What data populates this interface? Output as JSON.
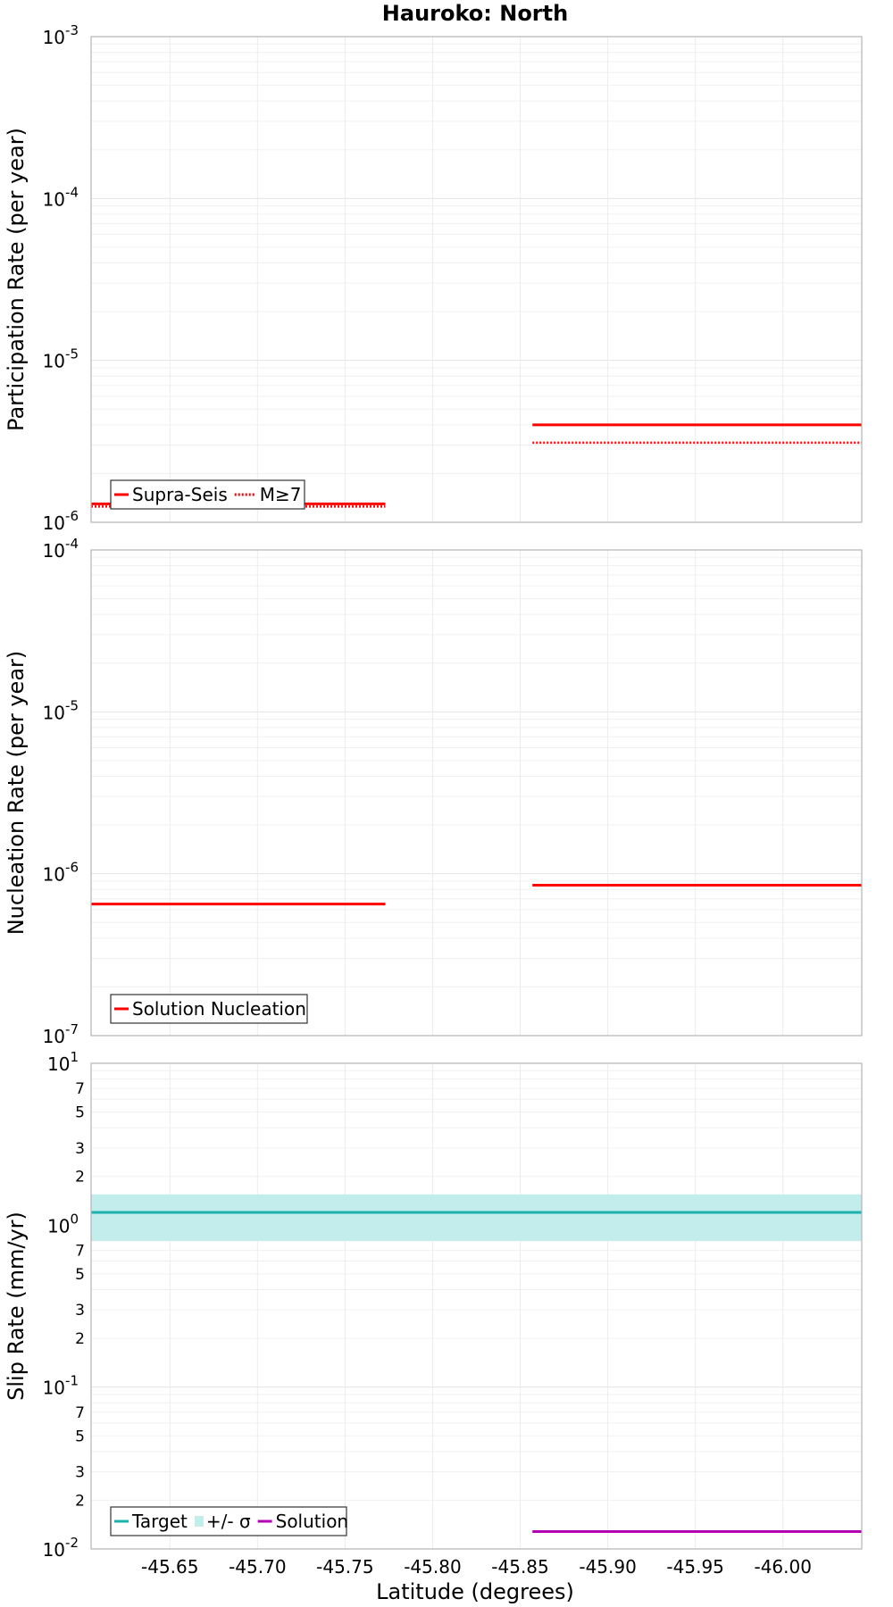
{
  "chart_data": {
    "type": "line",
    "title": "Hauroko: North",
    "xlabel": "Latitude (degrees)",
    "xlim": [
      -45.605,
      -46.045
    ],
    "x_ticks": [
      {
        "value": -45.65,
        "label": "-45.65"
      },
      {
        "value": -45.7,
        "label": "-45.70"
      },
      {
        "value": -45.75,
        "label": "-45.75"
      },
      {
        "value": -45.8,
        "label": "-45.80"
      },
      {
        "value": -45.85,
        "label": "-45.85"
      },
      {
        "value": -45.9,
        "label": "-45.90"
      },
      {
        "value": -45.95,
        "label": "-45.95"
      },
      {
        "value": -46.0,
        "label": "-46.00"
      }
    ],
    "panels": [
      {
        "id": "participation",
        "ylabel": "Participation Rate (per year)",
        "yscale": "log",
        "ylim": [
          1e-06,
          0.001
        ],
        "y_ticks": [
          {
            "value": 1e-06,
            "base": "10",
            "exp": "-6"
          },
          {
            "value": 1e-05,
            "base": "10",
            "exp": "-5"
          },
          {
            "value": 0.0001,
            "base": "10",
            "exp": "-4"
          },
          {
            "value": 0.001,
            "base": "10",
            "exp": "-3"
          }
        ],
        "series": [
          {
            "name": "Supra-Seis",
            "color": "#ff0000",
            "dash": "solid",
            "segments": [
              {
                "x0": -45.605,
                "x1": -45.773,
                "y": 1.3e-06
              },
              {
                "x0": -45.857,
                "x1": -46.045,
                "y": 4e-06
              }
            ]
          },
          {
            "name": "M≥7",
            "color": "#ff0000",
            "dash": "dotted",
            "segments": [
              {
                "x0": -45.605,
                "x1": -45.773,
                "y": 1.25e-06
              },
              {
                "x0": -45.857,
                "x1": -46.045,
                "y": 3.1e-06
              }
            ]
          }
        ],
        "legend": [
          {
            "label": "Supra-Seis",
            "color": "#ff0000",
            "style": "solid"
          },
          {
            "label": "M≥7",
            "color": "#ff0000",
            "style": "dotted"
          }
        ]
      },
      {
        "id": "nucleation",
        "ylabel": "Nucleation Rate (per year)",
        "yscale": "log",
        "ylim": [
          1e-07,
          0.0001
        ],
        "y_ticks": [
          {
            "value": 1e-07,
            "base": "10",
            "exp": "-7"
          },
          {
            "value": 1e-06,
            "base": "10",
            "exp": "-6"
          },
          {
            "value": 1e-05,
            "base": "10",
            "exp": "-5"
          },
          {
            "value": 0.0001,
            "base": "10",
            "exp": "-4"
          }
        ],
        "series": [
          {
            "name": "Solution Nucleation",
            "color": "#ff0000",
            "dash": "solid",
            "segments": [
              {
                "x0": -45.605,
                "x1": -45.773,
                "y": 6.5e-07
              },
              {
                "x0": -45.857,
                "x1": -46.045,
                "y": 8.5e-07
              }
            ]
          }
        ],
        "legend": [
          {
            "label": "Solution Nucleation",
            "color": "#ff0000",
            "style": "solid"
          }
        ]
      },
      {
        "id": "slip",
        "ylabel": "Slip Rate (mm/yr)",
        "yscale": "log",
        "ylim": [
          0.01,
          10
        ],
        "y_ticks": [
          {
            "value": 0.01,
            "base": "10",
            "exp": "-2"
          },
          {
            "value": 0.1,
            "base": "10",
            "exp": "-1"
          },
          {
            "value": 1,
            "base": "10",
            "exp": "0"
          },
          {
            "value": 10,
            "base": "10",
            "exp": "1"
          }
        ],
        "y_minor_labels": [
          {
            "value": 0.02,
            "label": "2"
          },
          {
            "value": 0.03,
            "label": "3"
          },
          {
            "value": 0.05,
            "label": "5"
          },
          {
            "value": 0.07,
            "label": "7"
          },
          {
            "value": 0.2,
            "label": "2"
          },
          {
            "value": 0.3,
            "label": "3"
          },
          {
            "value": 0.5,
            "label": "5"
          },
          {
            "value": 0.7,
            "label": "7"
          },
          {
            "value": 2,
            "label": "2"
          },
          {
            "value": 3,
            "label": "3"
          },
          {
            "value": 5,
            "label": "5"
          },
          {
            "value": 7,
            "label": "7"
          }
        ],
        "band": {
          "name": "+/- σ",
          "color": "#c3ecec",
          "x0": -45.605,
          "x1": -46.045,
          "y0": 0.8,
          "y1": 1.55
        },
        "series": [
          {
            "name": "Target",
            "color": "#1ab1ae",
            "dash": "solid",
            "segments": [
              {
                "x0": -45.605,
                "x1": -46.045,
                "y": 1.2
              }
            ]
          },
          {
            "name": "Solution",
            "color": "#b300b3",
            "dash": "solid",
            "segments": [
              {
                "x0": -45.857,
                "x1": -46.045,
                "y": 0.0128
              }
            ]
          }
        ],
        "legend": [
          {
            "label": "Target",
            "color": "#1ab1ae",
            "style": "solid"
          },
          {
            "label": "+/- σ",
            "color": "#c3ecec",
            "style": "box"
          },
          {
            "label": "Solution",
            "color": "#b300b3",
            "style": "solid"
          }
        ]
      }
    ]
  }
}
